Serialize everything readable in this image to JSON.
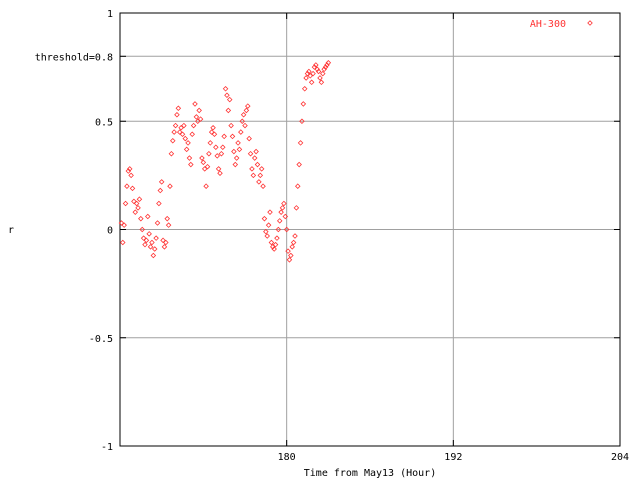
{
  "chart_data": {
    "type": "scatter",
    "title": "",
    "xlabel": "Time from May13 (Hour)",
    "ylabel": "r",
    "xlim": [
      168,
      204
    ],
    "ylim": [
      -1,
      1
    ],
    "grid": true,
    "legend_position": "top-right",
    "xticks": [
      {
        "value": 180,
        "label": "180"
      },
      {
        "value": 192,
        "label": "192"
      },
      {
        "value": 204,
        "label": "204"
      }
    ],
    "yticks": [
      {
        "value": 1,
        "label": "1"
      },
      {
        "value": 0.8,
        "label": "threshold=0.8"
      },
      {
        "value": 0.5,
        "label": "0.5"
      },
      {
        "value": 0,
        "label": "0"
      },
      {
        "value": -0.5,
        "label": "-0.5"
      },
      {
        "value": -1,
        "label": "-1"
      }
    ],
    "series": [
      {
        "name": "AH-300",
        "color": "#ff3333",
        "marker": "diamond",
        "points": [
          [
            168.1,
            0.03
          ],
          [
            168.2,
            -0.06
          ],
          [
            168.3,
            0.02
          ],
          [
            168.4,
            0.12
          ],
          [
            168.5,
            0.2
          ],
          [
            168.6,
            0.27
          ],
          [
            168.7,
            0.28
          ],
          [
            168.8,
            0.25
          ],
          [
            168.9,
            0.19
          ],
          [
            169.0,
            0.13
          ],
          [
            169.1,
            0.08
          ],
          [
            169.2,
            0.12
          ],
          [
            169.3,
            0.1
          ],
          [
            169.4,
            0.14
          ],
          [
            169.5,
            0.05
          ],
          [
            169.6,
            0.0
          ],
          [
            169.7,
            -0.04
          ],
          [
            169.8,
            -0.07
          ],
          [
            169.9,
            -0.05
          ],
          [
            170.0,
            0.06
          ],
          [
            170.1,
            -0.02
          ],
          [
            170.2,
            -0.08
          ],
          [
            170.3,
            -0.06
          ],
          [
            170.4,
            -0.12
          ],
          [
            170.5,
            -0.09
          ],
          [
            170.6,
            -0.04
          ],
          [
            170.7,
            0.03
          ],
          [
            170.8,
            0.12
          ],
          [
            170.9,
            0.18
          ],
          [
            171.0,
            0.22
          ],
          [
            171.1,
            -0.05
          ],
          [
            171.2,
            -0.08
          ],
          [
            171.3,
            -0.06
          ],
          [
            171.4,
            0.05
          ],
          [
            171.5,
            0.02
          ],
          [
            171.6,
            0.2
          ],
          [
            171.7,
            0.35
          ],
          [
            171.8,
            0.41
          ],
          [
            171.9,
            0.45
          ],
          [
            172.0,
            0.48
          ],
          [
            172.1,
            0.53
          ],
          [
            172.2,
            0.56
          ],
          [
            172.3,
            0.45
          ],
          [
            172.4,
            0.47
          ],
          [
            172.5,
            0.44
          ],
          [
            172.6,
            0.48
          ],
          [
            172.7,
            0.42
          ],
          [
            172.8,
            0.37
          ],
          [
            172.9,
            0.4
          ],
          [
            173.0,
            0.33
          ],
          [
            173.1,
            0.3
          ],
          [
            173.2,
            0.44
          ],
          [
            173.3,
            0.48
          ],
          [
            173.4,
            0.58
          ],
          [
            173.5,
            0.52
          ],
          [
            173.6,
            0.5
          ],
          [
            173.7,
            0.55
          ],
          [
            173.8,
            0.51
          ],
          [
            173.9,
            0.33
          ],
          [
            174.0,
            0.31
          ],
          [
            174.1,
            0.28
          ],
          [
            174.2,
            0.2
          ],
          [
            174.3,
            0.29
          ],
          [
            174.4,
            0.35
          ],
          [
            174.5,
            0.4
          ],
          [
            174.6,
            0.45
          ],
          [
            174.7,
            0.47
          ],
          [
            174.8,
            0.44
          ],
          [
            174.9,
            0.38
          ],
          [
            175.0,
            0.34
          ],
          [
            175.1,
            0.28
          ],
          [
            175.2,
            0.26
          ],
          [
            175.3,
            0.35
          ],
          [
            175.4,
            0.38
          ],
          [
            175.5,
            0.43
          ],
          [
            175.6,
            0.65
          ],
          [
            175.7,
            0.62
          ],
          [
            175.8,
            0.55
          ],
          [
            175.9,
            0.6
          ],
          [
            176.0,
            0.48
          ],
          [
            176.1,
            0.43
          ],
          [
            176.2,
            0.36
          ],
          [
            176.3,
            0.3
          ],
          [
            176.4,
            0.33
          ],
          [
            176.5,
            0.4
          ],
          [
            176.6,
            0.37
          ],
          [
            176.7,
            0.45
          ],
          [
            176.8,
            0.5
          ],
          [
            176.9,
            0.53
          ],
          [
            177.0,
            0.48
          ],
          [
            177.1,
            0.55
          ],
          [
            177.2,
            0.57
          ],
          [
            177.3,
            0.42
          ],
          [
            177.4,
            0.35
          ],
          [
            177.5,
            0.28
          ],
          [
            177.6,
            0.25
          ],
          [
            177.7,
            0.33
          ],
          [
            177.8,
            0.36
          ],
          [
            177.9,
            0.3
          ],
          [
            178.0,
            0.22
          ],
          [
            178.1,
            0.25
          ],
          [
            178.2,
            0.28
          ],
          [
            178.3,
            0.2
          ],
          [
            178.4,
            0.05
          ],
          [
            178.5,
            -0.01
          ],
          [
            178.6,
            -0.03
          ],
          [
            178.7,
            0.02
          ],
          [
            178.8,
            0.08
          ],
          [
            178.9,
            -0.06
          ],
          [
            179.0,
            -0.08
          ],
          [
            179.1,
            -0.09
          ],
          [
            179.2,
            -0.07
          ],
          [
            179.3,
            -0.04
          ],
          [
            179.4,
            0.0
          ],
          [
            179.5,
            0.04
          ],
          [
            179.6,
            0.08
          ],
          [
            179.7,
            0.1
          ],
          [
            179.8,
            0.12
          ],
          [
            179.9,
            0.06
          ],
          [
            180.0,
            0.0
          ],
          [
            180.1,
            -0.1
          ],
          [
            180.2,
            -0.14
          ],
          [
            180.3,
            -0.12
          ],
          [
            180.4,
            -0.08
          ],
          [
            180.5,
            -0.06
          ],
          [
            180.6,
            -0.03
          ],
          [
            180.7,
            0.1
          ],
          [
            180.8,
            0.2
          ],
          [
            180.9,
            0.3
          ],
          [
            181.0,
            0.4
          ],
          [
            181.1,
            0.5
          ],
          [
            181.2,
            0.58
          ],
          [
            181.3,
            0.65
          ],
          [
            181.4,
            0.7
          ],
          [
            181.5,
            0.72
          ],
          [
            181.6,
            0.73
          ],
          [
            181.7,
            0.71
          ],
          [
            181.8,
            0.68
          ],
          [
            181.9,
            0.72
          ],
          [
            182.0,
            0.75
          ],
          [
            182.1,
            0.76
          ],
          [
            182.2,
            0.74
          ],
          [
            182.3,
            0.73
          ],
          [
            182.4,
            0.7
          ],
          [
            182.5,
            0.68
          ],
          [
            182.6,
            0.72
          ],
          [
            182.7,
            0.74
          ],
          [
            182.8,
            0.75
          ],
          [
            182.9,
            0.76
          ],
          [
            183.0,
            0.77
          ]
        ]
      }
    ]
  }
}
